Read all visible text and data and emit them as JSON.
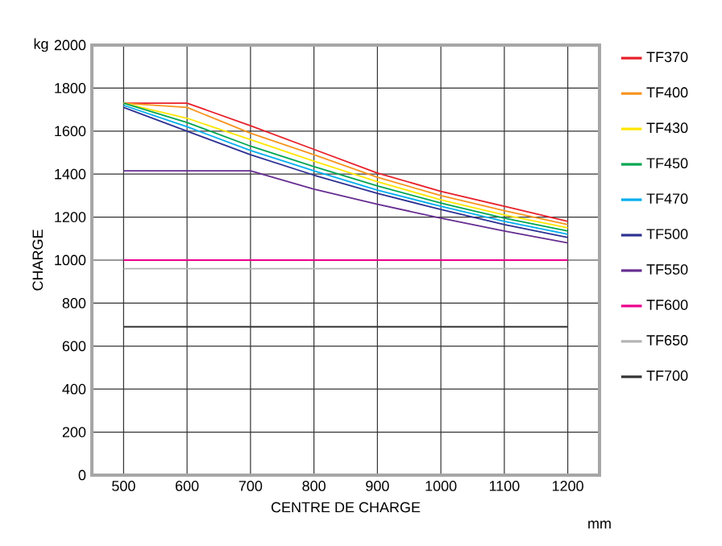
{
  "chart_data": {
    "type": "line",
    "xlabel": "CENTRE DE CHARGE",
    "ylabel": "CHARGE",
    "annotations": [
      "kg",
      "mm"
    ],
    "x": [
      500,
      600,
      700,
      800,
      900,
      1000,
      1100,
      1200
    ],
    "series": [
      {
        "name": "TF370",
        "color": "#e8202a",
        "values": [
          1730,
          1730,
          1625,
          1515,
          1405,
          1320,
          1250,
          1180
        ]
      },
      {
        "name": "TF400",
        "color": "#f7941d",
        "values": [
          1730,
          1710,
          1590,
          1490,
          1385,
          1300,
          1230,
          1165
        ]
      },
      {
        "name": "TF430",
        "color": "#ffe600",
        "values": [
          1730,
          1660,
          1560,
          1460,
          1365,
          1280,
          1210,
          1150
        ]
      },
      {
        "name": "TF450",
        "color": "#00a651",
        "values": [
          1730,
          1640,
          1530,
          1435,
          1345,
          1265,
          1195,
          1135
        ]
      },
      {
        "name": "TF470",
        "color": "#00aeef",
        "values": [
          1720,
          1620,
          1510,
          1415,
          1325,
          1250,
          1180,
          1120
        ]
      },
      {
        "name": "TF500",
        "color": "#2e3192",
        "values": [
          1710,
          1600,
          1490,
          1395,
          1310,
          1235,
          1165,
          1105
        ]
      },
      {
        "name": "TF550",
        "color": "#662d91",
        "values": [
          1415,
          1415,
          1415,
          1330,
          1260,
          1195,
          1135,
          1080
        ]
      },
      {
        "name": "TF600",
        "color": "#ec008c",
        "values": [
          1000,
          1000,
          1000,
          1000,
          1000,
          1000,
          1000,
          1000
        ]
      },
      {
        "name": "TF650",
        "color": "#b3b3b3",
        "values": [
          960,
          960,
          960,
          960,
          960,
          960,
          960,
          960
        ]
      },
      {
        "name": "TF700",
        "color": "#333333",
        "values": [
          690,
          690,
          690,
          690,
          690,
          690,
          690,
          690
        ]
      }
    ],
    "xlim": [
      450,
      1250
    ],
    "ylim": [
      0,
      2000
    ],
    "xticks": [
      500,
      600,
      700,
      800,
      900,
      1000,
      1100,
      1200
    ],
    "yticks": [
      0,
      200,
      400,
      600,
      800,
      1000,
      1200,
      1400,
      1600,
      1800,
      2000
    ],
    "grid": true,
    "legend": "right",
    "marker": "none",
    "line_style": "solid"
  }
}
